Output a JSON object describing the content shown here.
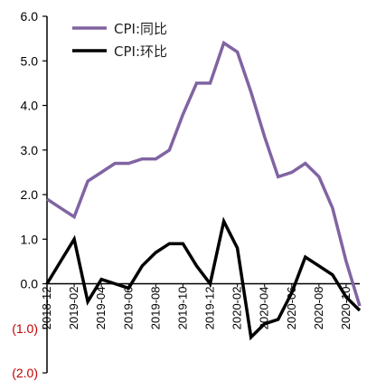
{
  "chart_data": {
    "type": "line",
    "x": [
      "2018-12",
      "2019-01",
      "2019-02",
      "2019-03",
      "2019-04",
      "2019-05",
      "2019-06",
      "2019-07",
      "2019-08",
      "2019-09",
      "2019-10",
      "2019-11",
      "2019-12",
      "2020-01",
      "2020-02",
      "2020-03",
      "2020-04",
      "2020-05",
      "2020-06",
      "2020-07",
      "2020-08",
      "2020-09",
      "2020-10",
      "2020-11"
    ],
    "tick_labels": [
      "2018-12",
      "2019-02",
      "2019-04",
      "2019-06",
      "2019-08",
      "2019-10",
      "2019-12",
      "2020-02",
      "2020-04",
      "2020-06",
      "2020-08",
      "2020-10"
    ],
    "y_tick_labels": [
      "6.0",
      "5.0",
      "4.0",
      "3.0",
      "2.0",
      "1.0",
      "0.0",
      "(1.0)",
      "(2.0)"
    ],
    "ylim": [
      -2.0,
      6.0
    ],
    "legend_position": "top-left",
    "series": [
      {
        "name": "CPI:同比",
        "color": "#8064A2",
        "values": [
          1.9,
          1.7,
          1.5,
          2.3,
          2.5,
          2.7,
          2.7,
          2.8,
          2.8,
          3.0,
          3.8,
          4.5,
          4.5,
          5.4,
          5.2,
          4.3,
          3.3,
          2.4,
          2.5,
          2.7,
          2.4,
          1.7,
          0.5,
          -0.5
        ]
      },
      {
        "name": "CPI:环比",
        "color": "#000000",
        "values": [
          0.0,
          0.5,
          1.0,
          -0.4,
          0.1,
          0.0,
          -0.1,
          0.4,
          0.7,
          0.9,
          0.9,
          0.4,
          0.0,
          1.4,
          0.8,
          -1.2,
          -0.9,
          -0.8,
          -0.2,
          0.6,
          0.4,
          0.2,
          -0.3,
          -0.6
        ]
      }
    ],
    "negative_label_color": "#C00000"
  }
}
